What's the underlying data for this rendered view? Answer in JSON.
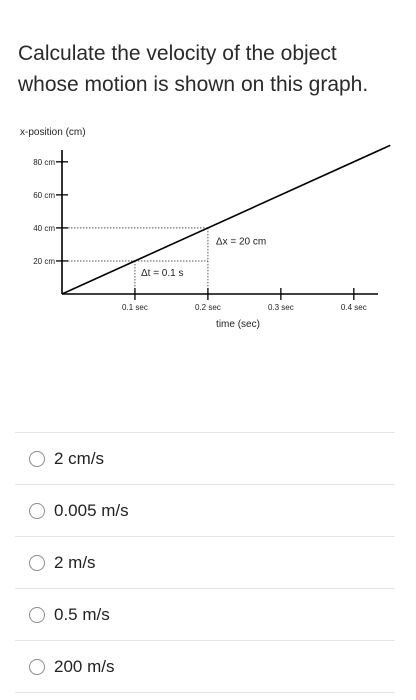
{
  "question": {
    "line1": "Calculate the velocity of the object",
    "line2": "whose motion is shown on this graph."
  },
  "chart_data": {
    "type": "line",
    "ylabel": "x-position (cm)",
    "xlabel": "time (sec)",
    "x_ticks": [
      {
        "value": 0.1,
        "label": "0.1 sec"
      },
      {
        "value": 0.2,
        "label": "0.2 sec"
      },
      {
        "value": 0.3,
        "label": "0.3 sec"
      },
      {
        "value": 0.4,
        "label": "0.4 sec"
      }
    ],
    "y_ticks": [
      {
        "value": 20,
        "label": "20 cm"
      },
      {
        "value": 40,
        "label": "40 cm"
      },
      {
        "value": 60,
        "label": "60 cm"
      },
      {
        "value": 80,
        "label": "80 cm"
      }
    ],
    "xlim": [
      0,
      0.44
    ],
    "ylim": [
      0,
      92
    ],
    "series": [
      {
        "x": [
          0,
          0.45
        ],
        "y": [
          0,
          90
        ]
      }
    ],
    "annotations": {
      "delta_t": "Δt = 0.1 s",
      "delta_x": "Δx = 20 cm"
    },
    "grid": false,
    "line_color": "#000000"
  },
  "options": [
    {
      "label": "2 cm/s"
    },
    {
      "label": "0.005 m/s"
    },
    {
      "label": "2 m/s"
    },
    {
      "label": "0.5 m/s"
    },
    {
      "label": "200 m/s"
    }
  ]
}
